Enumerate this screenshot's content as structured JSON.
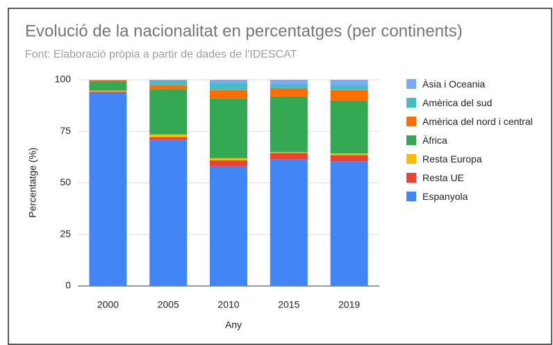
{
  "chart_data": {
    "type": "stacked_bar",
    "title": "Evolució de la nacionalitat en percentatges (per continents)",
    "subtitle": "Font: Elaboració pròpia a partir de dades de l'IDESCAT",
    "x_label": "Any",
    "y_label": "Percentatge (%)",
    "categories": [
      "2000",
      "2005",
      "2010",
      "2015",
      "2019"
    ],
    "series": [
      {
        "name": "Espanyola",
        "color": "#4285f4",
        "values": [
          94,
          71,
          58,
          61.5,
          60.5
        ]
      },
      {
        "name": "Resta UE",
        "color": "#ea4335",
        "values": [
          0.3,
          1.2,
          3,
          3,
          3
        ]
      },
      {
        "name": "Resta Europa",
        "color": "#fbbc04",
        "values": [
          0.5,
          1.3,
          1,
          0.5,
          0.8
        ]
      },
      {
        "name": "Àfrica",
        "color": "#34a853",
        "values": [
          4.5,
          22,
          29,
          27,
          25.7
        ]
      },
      {
        "name": "Amèrica del nord i central",
        "color": "#ff6d01",
        "values": [
          0.5,
          2,
          4,
          4,
          5
        ]
      },
      {
        "name": "Amèrica del sud",
        "color": "#46bdc6",
        "values": [
          0.1,
          2,
          3.5,
          2,
          2.5
        ]
      },
      {
        "name": "Àsia i Oceania",
        "color": "#7baaf7",
        "values": [
          0.1,
          0.5,
          1.5,
          2,
          2.5
        ]
      }
    ],
    "ylim": [
      0,
      100
    ],
    "yticks": [
      0,
      25,
      50,
      75,
      100
    ],
    "grid": true,
    "legend": "right"
  }
}
